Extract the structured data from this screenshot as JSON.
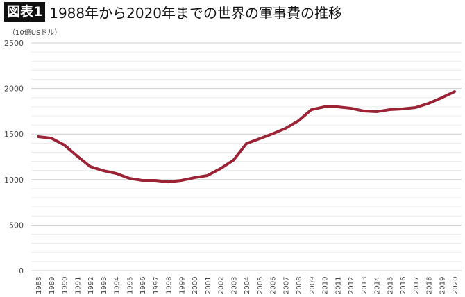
{
  "header": {
    "badge": "図表1",
    "title": "1988年から2020年までの世界の軍事費の推移"
  },
  "chart_data": {
    "type": "line",
    "title": "1988年から2020年までの世界の軍事費の推移",
    "ylabel": "（10億USドル）",
    "ylim": [
      0,
      2500
    ],
    "yticks": [
      0,
      500,
      1000,
      1500,
      2000,
      2500
    ],
    "grid": true,
    "color": "#9b2335",
    "x": [
      "1988",
      "1989",
      "1990",
      "1991",
      "1992",
      "1993",
      "1994",
      "1995",
      "1996",
      "1997",
      "1998",
      "1999",
      "2000",
      "2001",
      "2002",
      "2003",
      "2004",
      "2005",
      "2006",
      "2007",
      "2008",
      "2009",
      "2010",
      "2011",
      "2012",
      "2013",
      "2014",
      "2015",
      "2016",
      "2017",
      "2018",
      "2019",
      "2020"
    ],
    "series": [
      {
        "name": "世界の軍事費",
        "values": [
          1471,
          1455,
          1380,
          1258,
          1143,
          1098,
          1067,
          1014,
          991,
          991,
          975,
          991,
          1021,
          1044,
          1120,
          1212,
          1395,
          1448,
          1502,
          1562,
          1646,
          1768,
          1799,
          1799,
          1784,
          1753,
          1745,
          1768,
          1776,
          1791,
          1837,
          1898,
          1966
        ]
      }
    ]
  }
}
